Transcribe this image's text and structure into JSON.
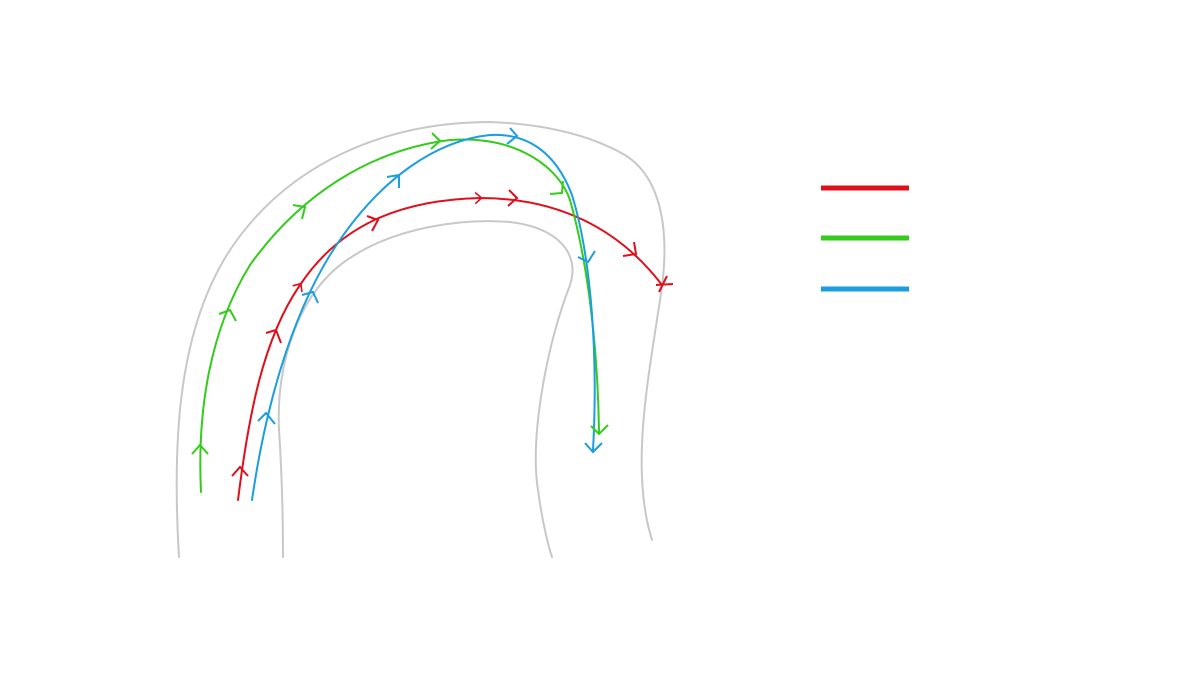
{
  "diagram": {
    "road": {
      "edge_color": "#c8c8c8"
    },
    "paths": [
      {
        "id": "red",
        "color": "#e0101a",
        "end_marker": "cross-icon"
      },
      {
        "id": "green",
        "color": "#33cc1a",
        "end_marker": "arrowhead-icon"
      },
      {
        "id": "blue",
        "color": "#1a9ee0",
        "end_marker": "arrowhead-icon"
      }
    ],
    "legend": {
      "entries": [
        {
          "color": "#e0101a",
          "label": ""
        },
        {
          "color": "#33cc1a",
          "label": ""
        },
        {
          "color": "#1a9ee0",
          "label": ""
        }
      ]
    }
  }
}
